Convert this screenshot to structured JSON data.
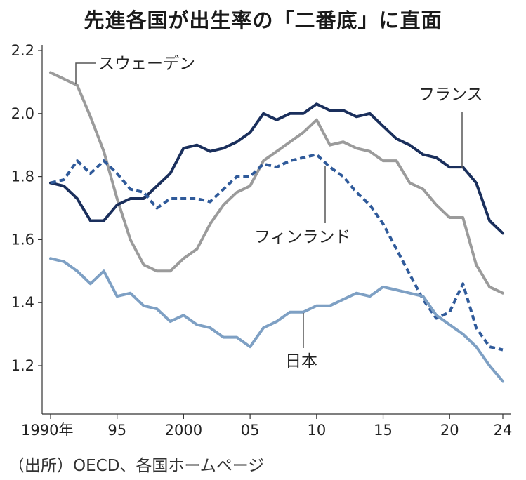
{
  "title": "先進各国が出生率の「二番底」に直面",
  "source": "（出所）OECD、各国ホームページ",
  "chart_data": {
    "type": "line",
    "title": "先進各国が出生率の「二番底」に直面",
    "xlabel": "",
    "ylabel": "",
    "xlim": [
      1990,
      2024
    ],
    "ylim": [
      1.15,
      2.25
    ],
    "grid": false,
    "y_ticks": [
      1.2,
      1.4,
      1.6,
      1.8,
      2.0,
      2.2
    ],
    "y_tick_labels": [
      "1.2",
      "1.4",
      "1.6",
      "1.8",
      "2.0",
      "2.2"
    ],
    "x_ticks": [
      1990,
      1995,
      2000,
      2005,
      2010,
      2015,
      2020,
      2024
    ],
    "x_tick_labels": [
      "1990年",
      "95",
      "2000",
      "05",
      "10",
      "15",
      "20",
      "24"
    ],
    "x": [
      1990,
      1991,
      1992,
      1993,
      1994,
      1995,
      1996,
      1997,
      1998,
      1999,
      2000,
      2001,
      2002,
      2003,
      2004,
      2005,
      2006,
      2007,
      2008,
      2009,
      2010,
      2011,
      2012,
      2013,
      2014,
      2015,
      2016,
      2017,
      2018,
      2019,
      2020,
      2021,
      2022,
      2023,
      2024
    ],
    "series": [
      {
        "name": "スウェーデン",
        "color": "#9b9b9b",
        "style": "solid",
        "values": [
          2.13,
          2.11,
          2.09,
          1.99,
          1.88,
          1.73,
          1.6,
          1.52,
          1.5,
          1.5,
          1.54,
          1.57,
          1.65,
          1.71,
          1.75,
          1.77,
          1.85,
          1.88,
          1.91,
          1.94,
          1.98,
          1.9,
          1.91,
          1.89,
          1.88,
          1.85,
          1.85,
          1.78,
          1.76,
          1.71,
          1.67,
          1.67,
          1.52,
          1.45,
          1.43
        ]
      },
      {
        "name": "フランス",
        "color": "#1a2f5c",
        "style": "solid",
        "values": [
          1.78,
          1.77,
          1.73,
          1.66,
          1.66,
          1.71,
          1.73,
          1.73,
          1.77,
          1.81,
          1.89,
          1.9,
          1.88,
          1.89,
          1.91,
          1.94,
          2.0,
          1.98,
          2.0,
          2.0,
          2.03,
          2.01,
          2.01,
          1.99,
          2.0,
          1.96,
          1.92,
          1.9,
          1.87,
          1.86,
          1.83,
          1.83,
          1.78,
          1.66,
          1.62
        ]
      },
      {
        "name": "フィンランド",
        "color": "#2f5a9a",
        "style": "dashed",
        "values": [
          1.78,
          1.79,
          1.85,
          1.81,
          1.85,
          1.81,
          1.76,
          1.75,
          1.7,
          1.73,
          1.73,
          1.73,
          1.72,
          1.76,
          1.8,
          1.8,
          1.84,
          1.83,
          1.85,
          1.86,
          1.87,
          1.83,
          1.8,
          1.75,
          1.71,
          1.65,
          1.57,
          1.49,
          1.41,
          1.35,
          1.37,
          1.46,
          1.32,
          1.26,
          1.25
        ]
      },
      {
        "name": "日本",
        "color": "#7ea0c4",
        "style": "solid",
        "values": [
          1.54,
          1.53,
          1.5,
          1.46,
          1.5,
          1.42,
          1.43,
          1.39,
          1.38,
          1.34,
          1.36,
          1.33,
          1.32,
          1.29,
          1.29,
          1.26,
          1.32,
          1.34,
          1.37,
          1.37,
          1.39,
          1.39,
          1.41,
          1.43,
          1.42,
          1.45,
          1.44,
          1.43,
          1.42,
          1.36,
          1.33,
          1.3,
          1.26,
          1.2,
          1.15
        ]
      }
    ]
  }
}
